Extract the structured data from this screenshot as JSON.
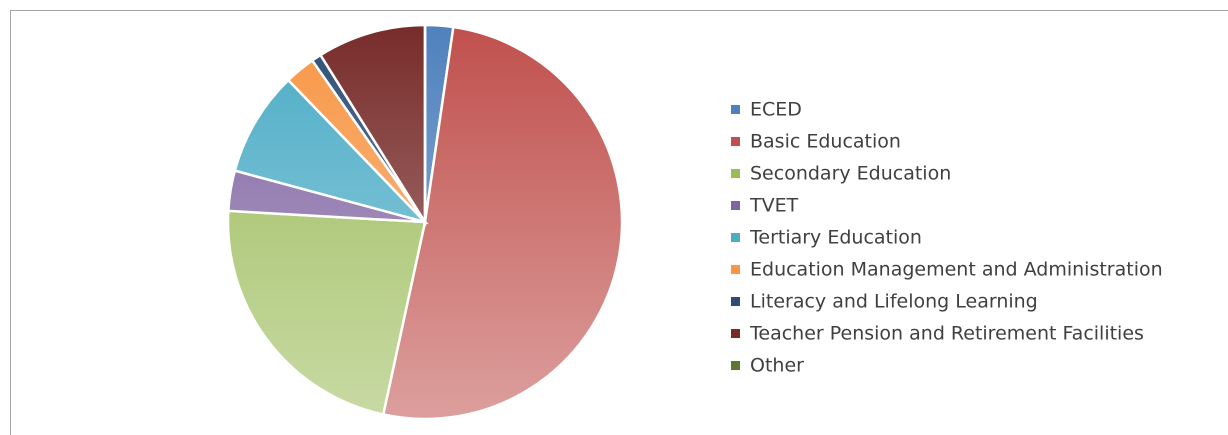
{
  "chart_data": {
    "type": "pie",
    "categories": [
      "ECED",
      "Basic Education",
      "Secondary Education",
      "TVET",
      "Tertiary Education",
      "Education Management and Administration",
      "Literacy and Lifelong Learning",
      "Teacher Pension and Retirement Facilities",
      "Other"
    ],
    "values": [
      2.3,
      51.1,
      22.5,
      3.3,
      8.6,
      2.5,
      0.8,
      8.9,
      0
    ],
    "colors": [
      "#4f81bd",
      "#c0504d",
      "#9bbb59",
      "#8064a2",
      "#4bacc6",
      "#f79646",
      "#2c4d75",
      "#772c2a",
      "#5f7530"
    ],
    "legend": "right"
  }
}
